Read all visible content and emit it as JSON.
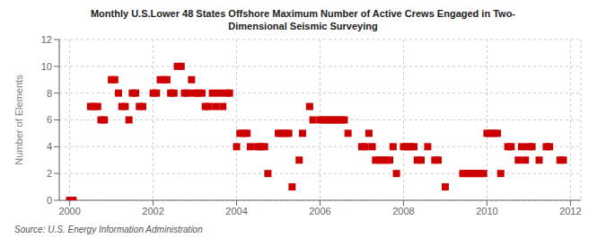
{
  "chart_data": {
    "type": "scatter",
    "title": "Monthly U.S.Lower 48 States Offshore Maximum Number of Active Crews Engaged in Two-\nDimensional Seismic Surveying",
    "y_label": "Number of Elements",
    "annotations": [
      "Source: U.S. Energy Information Administration"
    ],
    "color": "#cc0000",
    "marker": "square",
    "grid": true,
    "xlim": [
      1999.75,
      2012.25
    ],
    "ylim": [
      0,
      12
    ],
    "xticks": [
      2000,
      2002,
      2004,
      2006,
      2008,
      2010,
      2012
    ],
    "yticks": [
      0,
      2,
      4,
      6,
      8,
      10,
      12
    ],
    "x": [
      2000.0,
      2000.08,
      2000.5,
      2000.58,
      2000.67,
      2000.75,
      2000.83,
      2001.0,
      2001.08,
      2001.17,
      2001.25,
      2001.33,
      2001.42,
      2001.5,
      2001.58,
      2001.67,
      2001.75,
      2002.0,
      2002.08,
      2002.17,
      2002.25,
      2002.33,
      2002.42,
      2002.5,
      2002.58,
      2002.67,
      2002.75,
      2002.83,
      2002.92,
      2003.0,
      2003.08,
      2003.17,
      2003.25,
      2003.33,
      2003.42,
      2003.5,
      2003.58,
      2003.67,
      2003.75,
      2003.83,
      2004.0,
      2004.08,
      2004.17,
      2004.25,
      2004.33,
      2004.5,
      2004.58,
      2004.67,
      2004.75,
      2005.0,
      2005.08,
      2005.17,
      2005.25,
      2005.33,
      2005.5,
      2005.58,
      2005.75,
      2005.83,
      2006.0,
      2006.08,
      2006.17,
      2006.25,
      2006.33,
      2006.42,
      2006.5,
      2006.58,
      2006.67,
      2007.0,
      2007.08,
      2007.17,
      2007.25,
      2007.33,
      2007.42,
      2007.5,
      2007.58,
      2007.67,
      2007.75,
      2007.83,
      2008.0,
      2008.08,
      2008.17,
      2008.25,
      2008.33,
      2008.42,
      2008.58,
      2008.75,
      2008.83,
      2009.0,
      2009.42,
      2009.5,
      2009.58,
      2009.67,
      2009.75,
      2009.83,
      2009.92,
      2010.0,
      2010.08,
      2010.17,
      2010.25,
      2010.33,
      2010.5,
      2010.58,
      2010.75,
      2010.83,
      2010.92,
      2011.0,
      2011.08,
      2011.25,
      2011.42,
      2011.5,
      2011.75,
      2011.83
    ],
    "values": [
      0,
      0,
      7,
      7,
      7,
      6,
      6,
      9,
      9,
      8,
      7,
      7,
      6,
      8,
      8,
      7,
      7,
      8,
      8,
      9,
      9,
      9,
      8,
      8,
      10,
      10,
      8,
      8,
      9,
      8,
      8,
      8,
      7,
      7,
      8,
      7,
      8,
      7,
      8,
      8,
      4,
      5,
      5,
      5,
      4,
      4,
      4,
      4,
      2,
      5,
      5,
      5,
      5,
      1,
      3,
      5,
      7,
      6,
      6,
      6,
      6,
      6,
      6,
      6,
      6,
      6,
      5,
      4,
      4,
      5,
      4,
      3,
      3,
      3,
      3,
      3,
      4,
      2,
      4,
      4,
      4,
      4,
      3,
      3,
      4,
      3,
      3,
      1,
      2,
      2,
      2,
      2,
      2,
      2,
      2,
      5,
      5,
      5,
      5,
      2,
      4,
      4,
      3,
      4,
      3,
      4,
      4,
      3,
      4,
      4,
      3,
      3
    ]
  }
}
